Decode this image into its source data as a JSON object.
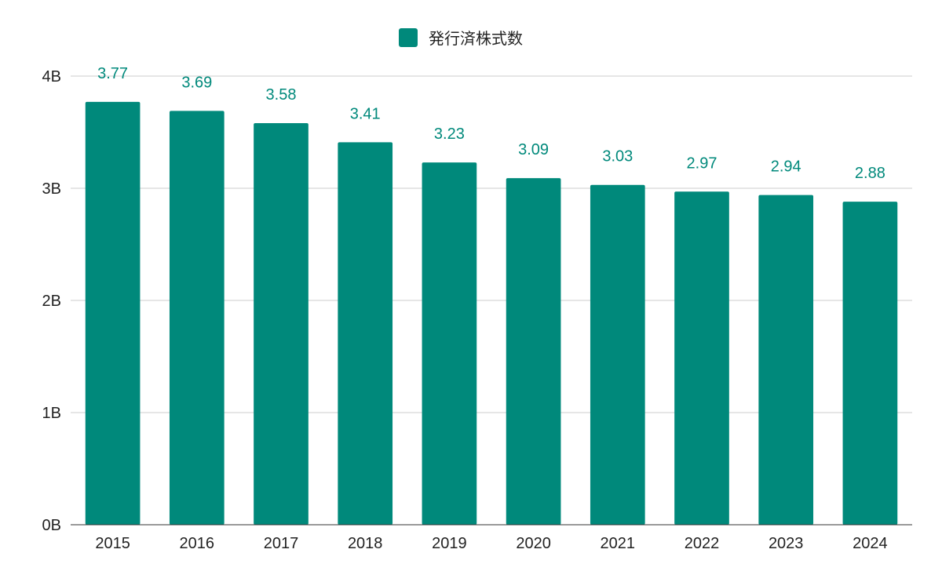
{
  "chart_data": {
    "type": "bar",
    "title": "",
    "xlabel": "",
    "ylabel": "",
    "categories": [
      "2015",
      "2016",
      "2017",
      "2018",
      "2019",
      "2020",
      "2021",
      "2022",
      "2023",
      "2024"
    ],
    "series": [
      {
        "name": "発行済株式数",
        "values": [
          3.77,
          3.69,
          3.58,
          3.41,
          3.23,
          3.09,
          3.03,
          2.97,
          2.94,
          2.88
        ],
        "data_labels": [
          "3.77",
          "3.69",
          "3.58",
          "3.41",
          "3.23",
          "3.09",
          "3.03",
          "2.97",
          "2.94",
          "2.88"
        ],
        "color": "#00897b"
      }
    ],
    "unit_suffix": "B",
    "ylim": [
      0,
      4
    ],
    "yticks": [
      0,
      1,
      2,
      3,
      4
    ],
    "ytick_labels": [
      "0B",
      "1B",
      "2B",
      "3B",
      "4B"
    ],
    "grid": true,
    "legend_position": "top"
  },
  "colors": {
    "bar": "#00897b",
    "data_label": "#00897b",
    "grid": "#cccccc",
    "axis": "#333333",
    "text": "#222222"
  }
}
